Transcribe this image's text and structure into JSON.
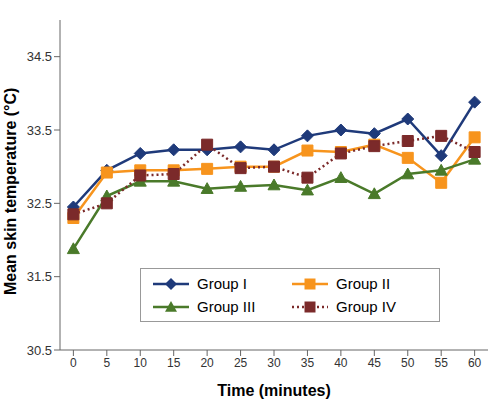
{
  "chart_data": {
    "type": "line",
    "x_label": "Time (minutes)",
    "y_label": "Mean skin temperature (°C)",
    "x": [
      0,
      5,
      10,
      15,
      20,
      25,
      30,
      35,
      40,
      45,
      50,
      55,
      60
    ],
    "xlim": [
      -2,
      62
    ],
    "xticks": [
      0,
      5,
      10,
      15,
      20,
      25,
      30,
      35,
      40,
      45,
      50,
      55,
      60
    ],
    "ylim": [
      30.5,
      35.0
    ],
    "yticks": [
      30.5,
      31.5,
      32.5,
      33.5,
      34.5
    ],
    "grid": false,
    "legend": "bottom",
    "series": [
      {
        "name": "Group I",
        "color": "#1f3a7a",
        "marker": "diamond",
        "line_style": "solid",
        "values": [
          32.45,
          32.95,
          33.18,
          33.23,
          33.23,
          33.27,
          33.23,
          33.42,
          33.5,
          33.45,
          33.65,
          33.15,
          33.88
        ]
      },
      {
        "name": "Group II",
        "color": "#f7941d",
        "marker": "square",
        "line_style": "solid",
        "values": [
          32.3,
          32.92,
          32.95,
          32.95,
          32.97,
          33.0,
          33.0,
          33.22,
          33.2,
          33.3,
          33.12,
          32.78,
          33.4
        ]
      },
      {
        "name": "Group III",
        "color": "#4a7a2a",
        "marker": "triangle",
        "line_style": "solid",
        "values": [
          31.88,
          32.6,
          32.8,
          32.8,
          32.7,
          32.73,
          32.75,
          32.68,
          32.85,
          32.63,
          32.9,
          32.95,
          33.1
        ]
      },
      {
        "name": "Group IV",
        "color": "#7b2a2a",
        "marker": "square",
        "line_style": "dotted",
        "values": [
          32.35,
          32.5,
          32.88,
          32.9,
          33.3,
          32.98,
          33.0,
          32.85,
          33.18,
          33.28,
          33.35,
          33.42,
          33.2
        ]
      }
    ]
  }
}
